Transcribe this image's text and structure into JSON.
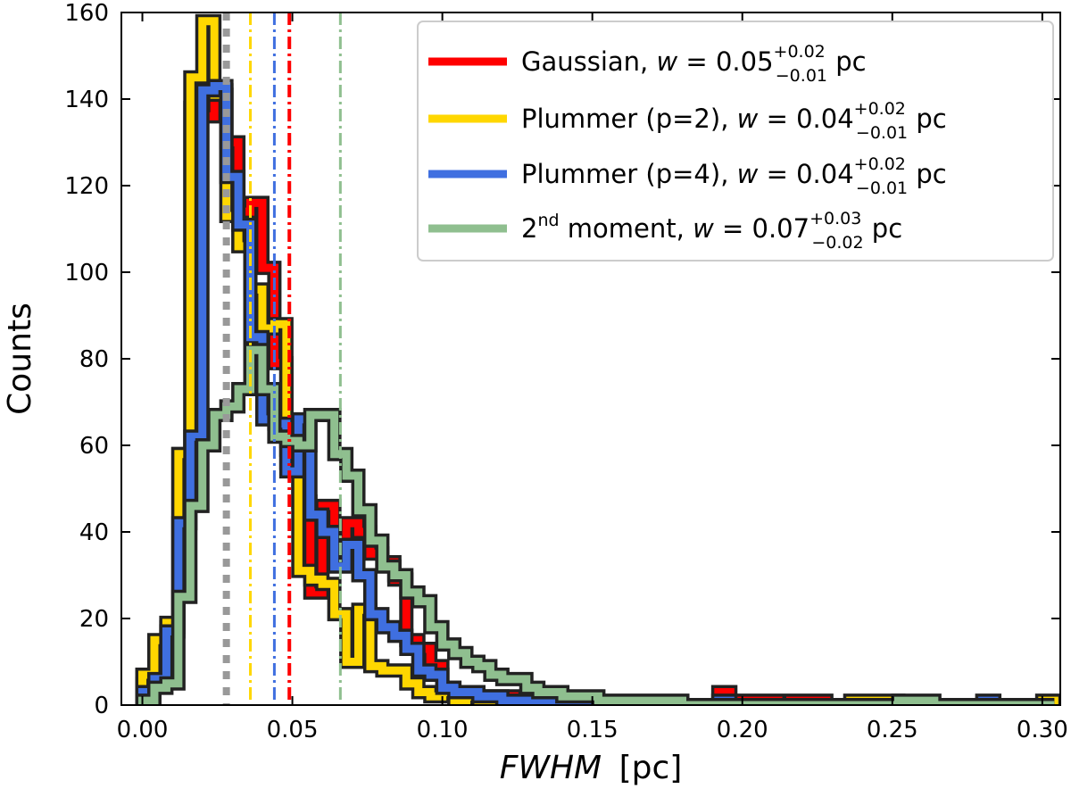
{
  "chart_data": {
    "type": "histogram",
    "xlabel_main": "FWHM",
    "xlabel_unit": "[pc]",
    "ylabel": "Counts",
    "xlim": [
      -0.007,
      0.306
    ],
    "ylim": [
      0,
      160
    ],
    "xticks": [
      0.0,
      0.05,
      0.1,
      0.15,
      0.2,
      0.25,
      0.3
    ],
    "xtick_labels": [
      "0.00",
      "0.05",
      "0.10",
      "0.15",
      "0.20",
      "0.25",
      "0.30"
    ],
    "yticks": [
      0,
      20,
      40,
      60,
      80,
      100,
      120,
      140,
      160
    ],
    "ytick_labels": [
      "0",
      "20",
      "40",
      "60",
      "80",
      "100",
      "120",
      "140",
      "160"
    ],
    "bin_start": 0.0,
    "bin_width": 0.004,
    "series": [
      {
        "name": "Gaussian",
        "color": "#ff0000",
        "legend_prefix": "Gaussian, ",
        "legend_w": "w",
        "legend_eq": " = 0.05",
        "legend_sup": "+0.02",
        "legend_sub": "−0.01",
        "legend_suffix": " pc",
        "median": 0.049,
        "counts": [
          5,
          9,
          18,
          58,
          138,
          136,
          142,
          130,
          114,
          116,
          101,
          79,
          59,
          47,
          26,
          46,
          38,
          42,
          40,
          35,
          33,
          29,
          15,
          13,
          9,
          4,
          3,
          3,
          2,
          1,
          2,
          1,
          1,
          1,
          1,
          1,
          0,
          0,
          0,
          0,
          0,
          0,
          0,
          0,
          0,
          0,
          0,
          0,
          3,
          1,
          1,
          1,
          1,
          0,
          1,
          1,
          1,
          0,
          0,
          0,
          0,
          0,
          0,
          0,
          0,
          0,
          0,
          0,
          0,
          0,
          0,
          0,
          0,
          0,
          0,
          0
        ]
      },
      {
        "name": "Plummer (p=2)",
        "color": "#ffd700",
        "legend_prefix": "Plummer (p=2), ",
        "legend_w": "w",
        "legend_eq": " = 0.04",
        "legend_sup": "+0.02",
        "legend_sub": "−0.01",
        "legend_suffix": " pc",
        "median": 0.036,
        "counts": [
          7,
          15,
          19,
          58,
          145,
          158,
          141,
          113,
          106,
          96,
          87,
          88,
          56,
          31,
          29,
          28,
          21,
          10,
          22,
          9,
          8,
          8,
          5,
          3,
          2,
          3,
          1,
          2,
          1,
          1,
          1,
          0,
          0,
          0,
          0,
          0,
          0,
          0,
          0,
          0,
          0,
          0,
          0,
          0,
          0,
          0,
          0,
          0,
          0,
          0,
          0,
          0,
          0,
          0,
          0,
          0,
          0,
          0,
          0,
          1,
          1,
          1,
          1,
          0,
          0,
          0,
          0,
          0,
          0,
          0,
          0,
          0,
          0,
          0,
          0,
          1
        ]
      },
      {
        "name": "Plummer (p=4)",
        "color": "#3f6fe0",
        "legend_prefix": "Plummer (p=4), ",
        "legend_w": "w",
        "legend_eq": " = 0.04",
        "legend_sup": "+0.02",
        "legend_sub": "−0.01",
        "legend_suffix": " pc",
        "median": 0.044,
        "counts": [
          3,
          6,
          17,
          42,
          62,
          142,
          143,
          122,
          111,
          85,
          66,
          65,
          54,
          66,
          44,
          40,
          32,
          37,
          30,
          21,
          18,
          16,
          13,
          8,
          7,
          4,
          3,
          3,
          2,
          2,
          1,
          1,
          1,
          1,
          1,
          1,
          1,
          0,
          0,
          0,
          0,
          0,
          0,
          0,
          0,
          0,
          0,
          0,
          1,
          0,
          0,
          0,
          0,
          0,
          0,
          0,
          0,
          0,
          0,
          0,
          0,
          0,
          0,
          0,
          0,
          0,
          0,
          0,
          0,
          0,
          1,
          0,
          0,
          0,
          0,
          0
        ]
      },
      {
        "name": "2nd moment",
        "color": "#8fbf8f",
        "legend_prefix": "2",
        "legend_nd": "nd",
        "legend_mid": " moment, ",
        "legend_w": "w",
        "legend_eq": " = 0.07",
        "legend_sup": "+0.03",
        "legend_sub": "−0.02",
        "legend_suffix": " pc",
        "median": 0.066,
        "counts": [
          1,
          4,
          5,
          25,
          46,
          60,
          67,
          69,
          73,
          82,
          73,
          62,
          61,
          60,
          67,
          67,
          58,
          53,
          45,
          38,
          32,
          30,
          26,
          24,
          18,
          14,
          12,
          10,
          9,
          7,
          6,
          6,
          4,
          3,
          3,
          2,
          2,
          2,
          1,
          1,
          1,
          1,
          1,
          1,
          1,
          0,
          0,
          0,
          0,
          0,
          0,
          0,
          0,
          0,
          0,
          0,
          0,
          0,
          0,
          0,
          0,
          0,
          0,
          1,
          1,
          1,
          0,
          0,
          0,
          0,
          0,
          0,
          0,
          0,
          0,
          0
        ]
      }
    ],
    "gray_dotted_x": 0.028,
    "legend_position": "top-right"
  }
}
